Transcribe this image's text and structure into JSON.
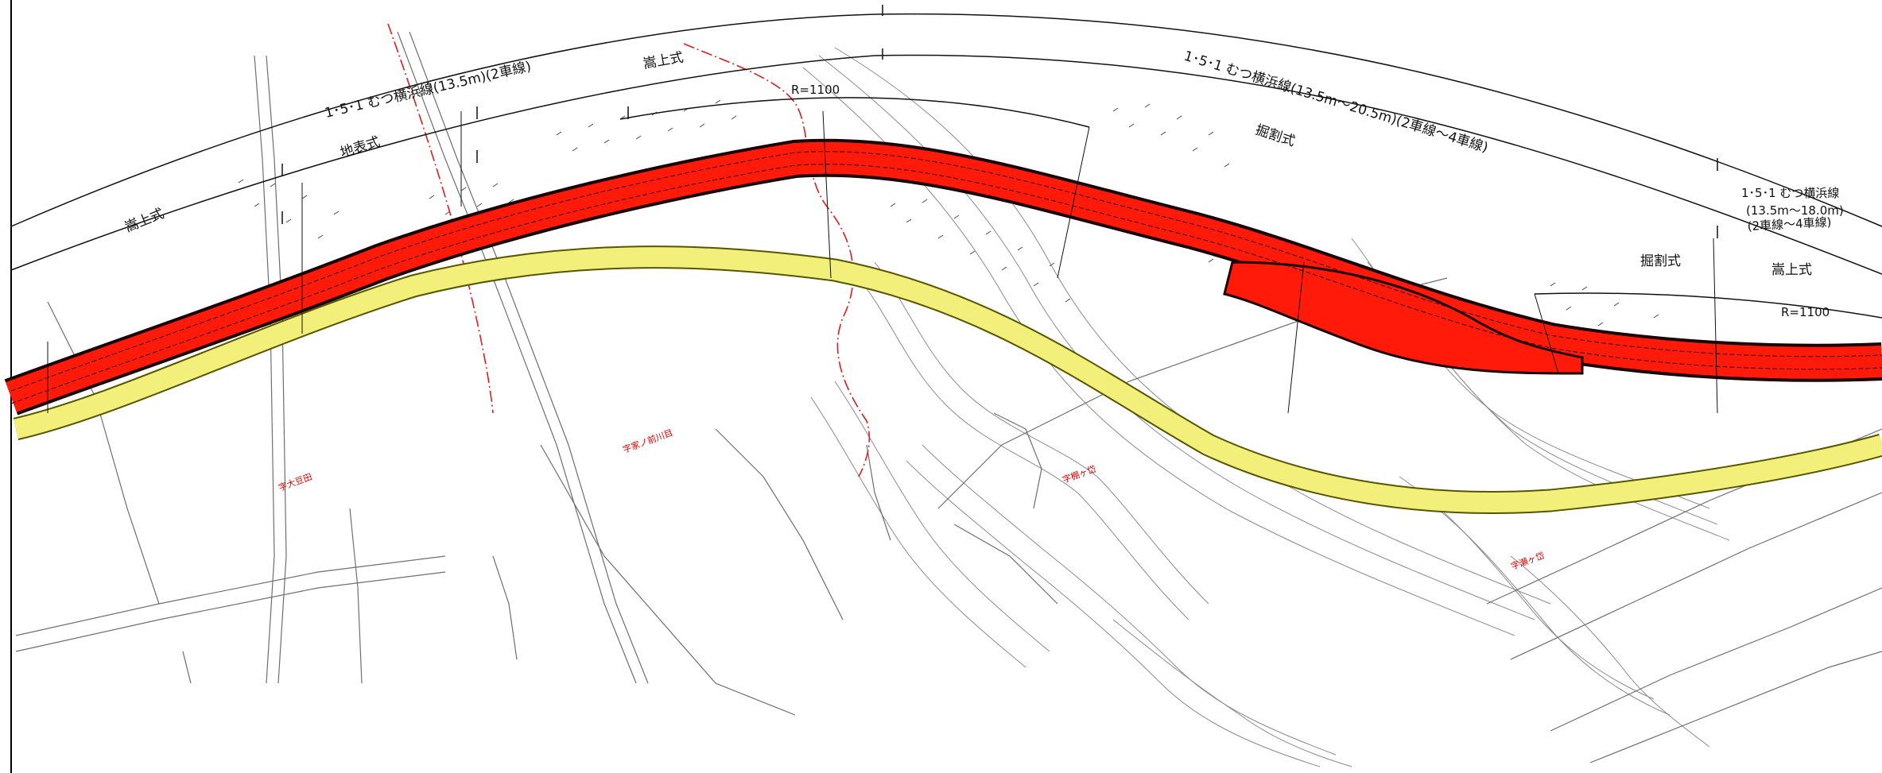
{
  "colors": {
    "road_fill": "#ff1a0a",
    "road_edge": "#1a0000",
    "existing_route": "#f2ef7a",
    "boundary": "#e31b1b",
    "contour": "#8a8a8a",
    "linework": "#222222"
  },
  "route_labels": {
    "section_1": "1･5･1 むつ横浜線(13.5m)(2車線)",
    "section_2": "1･5･1 むつ横浜線(13.5m～20.5m)(2車線～4車線)",
    "section_3_line1": "1･5･1 むつ横浜線",
    "section_3_line2": "(13.5m～18.0m)",
    "section_3_line3": "(2車線～4車線)"
  },
  "structure_labels": {
    "embankment_1": "嵩上式",
    "surface": "地表式",
    "embankment_2": "嵩上式",
    "cut_1": "掘割式",
    "cut_2": "掘割式",
    "embankment_3": "嵩上式"
  },
  "curve_labels": {
    "curve_1": "R=1100",
    "curve_2": "R=1100"
  },
  "place_labels": {
    "place_1": "字大豆田",
    "place_2": "字家ノ前川目",
    "place_3": "字棚ヶ岱",
    "place_4": "字瀬ヶ岱"
  }
}
